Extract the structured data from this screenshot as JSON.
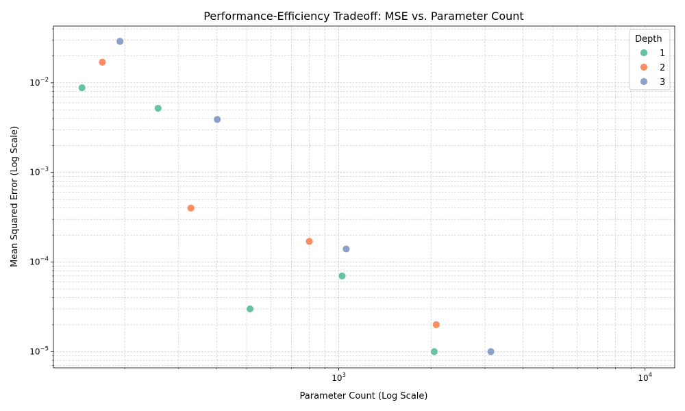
{
  "chart_data": {
    "type": "scatter",
    "title": "Performance-Efficiency Tradeoff: MSE vs. Parameter Count",
    "xlabel": "Parameter Count (Log Scale)",
    "ylabel": "Mean Squared Error (Log Scale)",
    "xscale": "log",
    "yscale": "log",
    "xlim": [
      117,
      12500
    ],
    "ylim": [
      6.6e-06,
      0.043
    ],
    "grid": true,
    "x_ticks": [
      {
        "value": 1000,
        "base": "10",
        "exp": "3"
      },
      {
        "value": 10000,
        "base": "10",
        "exp": "4"
      }
    ],
    "y_ticks": [
      {
        "value": 1e-05,
        "base": "10",
        "exp": "−5"
      },
      {
        "value": 0.0001,
        "base": "10",
        "exp": "−4"
      },
      {
        "value": 0.001,
        "base": "10",
        "exp": "−3"
      },
      {
        "value": 0.01,
        "base": "10",
        "exp": "−2"
      }
    ],
    "legend": {
      "title": "Depth",
      "position": "top-right",
      "entries": [
        "1",
        "2",
        "3"
      ]
    },
    "series": [
      {
        "name": "1",
        "color": "#66c2a5",
        "points": [
          {
            "x": 145,
            "y": 0.0088
          },
          {
            "x": 257,
            "y": 0.0052
          },
          {
            "x": 513,
            "y": 3e-05
          },
          {
            "x": 1025,
            "y": 7e-05
          },
          {
            "x": 2049,
            "y": 1e-05
          }
        ]
      },
      {
        "name": "2",
        "color": "#fc8d62",
        "points": [
          {
            "x": 169,
            "y": 0.017
          },
          {
            "x": 329,
            "y": 0.0004
          },
          {
            "x": 801,
            "y": 0.00017
          },
          {
            "x": 2081,
            "y": 2e-05
          }
        ]
      },
      {
        "name": "3",
        "color": "#8da0cb",
        "points": [
          {
            "x": 193,
            "y": 0.029
          },
          {
            "x": 401,
            "y": 0.0039
          },
          {
            "x": 1057,
            "y": 0.00014
          },
          {
            "x": 3137,
            "y": 1e-05
          }
        ]
      }
    ]
  }
}
